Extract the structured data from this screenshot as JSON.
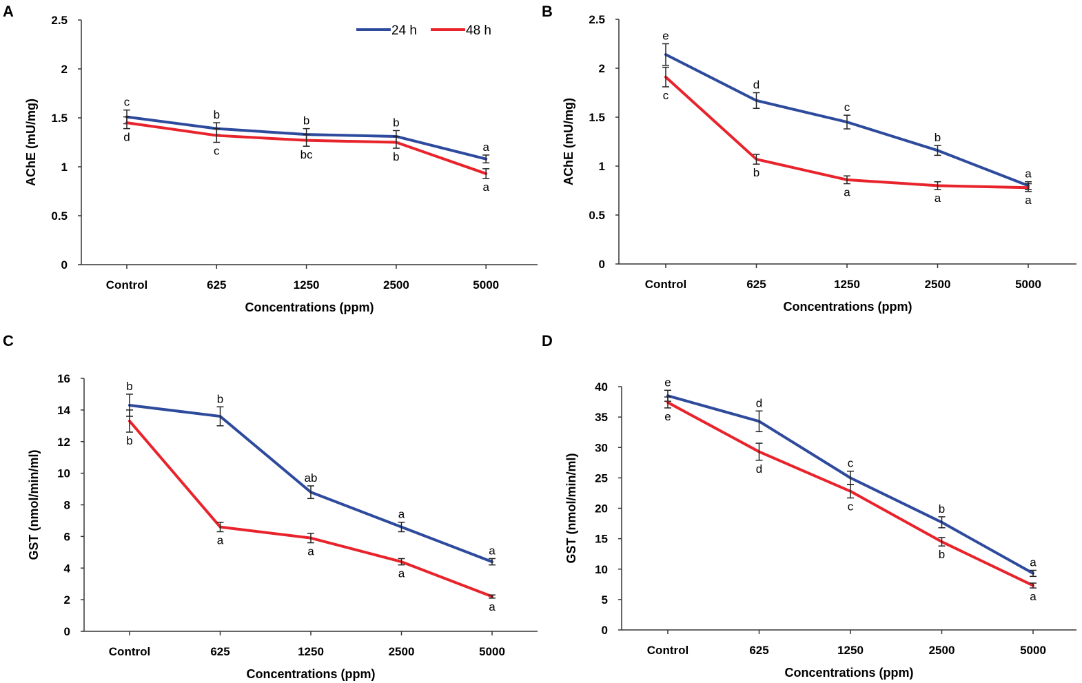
{
  "legend": {
    "series": [
      "24 h",
      "48 h"
    ]
  },
  "colors": {
    "24 h": "#2e4a9c",
    "48 h": "#e8232b",
    "axis": "#333333",
    "errorbar": "#222222"
  },
  "chart_data": [
    {
      "panel": "A",
      "type": "line",
      "categories": [
        "Control",
        "625",
        "1250",
        "2500",
        "5000"
      ],
      "xlabel": "Concentrations (ppm)",
      "ylabel": "AChE (mU/mg)",
      "ylim": [
        0,
        2.5
      ],
      "yticks": [
        0,
        0.5,
        1,
        1.5,
        2,
        2.5
      ],
      "yticklabels": [
        "0",
        "0.5",
        "1",
        "1.5",
        "2",
        "2.5"
      ],
      "show_legend": true,
      "series": [
        {
          "name": "24 h",
          "values": [
            1.51,
            1.39,
            1.33,
            1.31,
            1.08
          ],
          "errors": [
            0.07,
            0.06,
            0.06,
            0.06,
            0.04
          ],
          "labels": [
            "c",
            "b",
            "b",
            "b",
            "a"
          ]
        },
        {
          "name": "48 h",
          "values": [
            1.45,
            1.32,
            1.27,
            1.25,
            0.93
          ],
          "errors": [
            0.06,
            0.07,
            0.06,
            0.06,
            0.05
          ],
          "labels": [
            "d",
            "c",
            "bc",
            "b",
            "a"
          ]
        }
      ]
    },
    {
      "panel": "B",
      "type": "line",
      "categories": [
        "Control",
        "625",
        "1250",
        "2500",
        "5000"
      ],
      "xlabel": "Concentrations (ppm)",
      "ylabel": "AChE (mU/mg)",
      "ylim": [
        0,
        2.5
      ],
      "yticks": [
        0,
        0.5,
        1,
        1.5,
        2,
        2.5
      ],
      "yticklabels": [
        "0",
        "0.5",
        "1",
        "1.5",
        "2",
        "2.5"
      ],
      "show_legend": false,
      "series": [
        {
          "name": "24 h",
          "values": [
            2.14,
            1.67,
            1.45,
            1.16,
            0.8
          ],
          "errors": [
            0.11,
            0.08,
            0.07,
            0.05,
            0.04
          ],
          "labels": [
            "e",
            "d",
            "c",
            "b",
            "a"
          ]
        },
        {
          "name": "48 h",
          "values": [
            1.91,
            1.07,
            0.86,
            0.8,
            0.78
          ],
          "errors": [
            0.1,
            0.05,
            0.04,
            0.04,
            0.04
          ],
          "labels": [
            "c",
            "b",
            "a",
            "a",
            "a"
          ]
        }
      ]
    },
    {
      "panel": "C",
      "type": "line",
      "categories": [
        "Control",
        "625",
        "1250",
        "2500",
        "5000"
      ],
      "xlabel": "Concentrations (ppm)",
      "ylabel": "GST (nmol/min/ml)",
      "ylim": [
        0,
        16
      ],
      "yticks": [
        0,
        2,
        4,
        6,
        8,
        10,
        12,
        14,
        16
      ],
      "yticklabels": [
        "0",
        "2",
        "4",
        "6",
        "8",
        "10",
        "12",
        "14",
        "16"
      ],
      "show_legend": false,
      "series": [
        {
          "name": "24 h",
          "values": [
            14.3,
            13.6,
            8.8,
            6.6,
            4.4
          ],
          "errors": [
            0.7,
            0.6,
            0.4,
            0.3,
            0.2
          ],
          "labels": [
            "b",
            "b",
            "ab",
            "a",
            "a"
          ]
        },
        {
          "name": "48 h",
          "values": [
            13.3,
            6.6,
            5.9,
            4.4,
            2.2
          ],
          "errors": [
            0.7,
            0.3,
            0.3,
            0.2,
            0.1
          ],
          "labels": [
            "b",
            "a",
            "a",
            "a",
            "a"
          ]
        }
      ]
    },
    {
      "panel": "D",
      "type": "line",
      "categories": [
        "Control",
        "625",
        "1250",
        "2500",
        "5000"
      ],
      "xlabel": "Concentrations (ppm)",
      "ylabel": "GST (nmol/min/ml)",
      "ylim": [
        0,
        40
      ],
      "yticks": [
        0,
        5,
        10,
        15,
        20,
        25,
        30,
        35,
        40
      ],
      "yticklabels": [
        "0",
        "5",
        "10",
        "15",
        "20",
        "25",
        "30",
        "35",
        "40"
      ],
      "show_legend": false,
      "series": [
        {
          "name": "24 h",
          "values": [
            38.5,
            34.3,
            25.0,
            17.7,
            9.3
          ],
          "errors": [
            0.9,
            1.7,
            1.1,
            0.9,
            0.5
          ],
          "labels": [
            "e",
            "d",
            "c",
            "b",
            "a"
          ]
        },
        {
          "name": "48 h",
          "values": [
            37.4,
            29.3,
            22.8,
            14.5,
            7.3
          ],
          "errors": [
            0.9,
            1.4,
            1.1,
            0.7,
            0.4
          ],
          "labels": [
            "e",
            "d",
            "c",
            "b",
            "a"
          ]
        }
      ]
    }
  ]
}
